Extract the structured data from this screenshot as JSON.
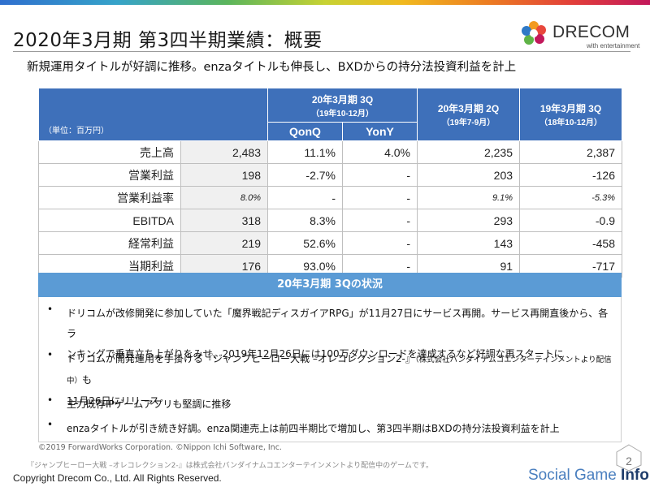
{
  "header": {
    "title": "2020年3月期 第3四半期業績：概要",
    "logo_text": "DRECOM",
    "logo_subtext": "with entertainment",
    "subtitle": "新規運用タイトルが好調に推移。enzaタイトルも伸長し、BXDからの持分法投資利益を計上"
  },
  "table": {
    "unit_label": "（単位：百万円）",
    "col_current_q": "20年3月期 3Q",
    "col_current_q_period": "（19年10-12月）",
    "col_qonq": "QonQ",
    "col_yony": "YonY",
    "col_prev_q": "20年3月期 2Q",
    "col_prev_q_period": "（19年7-9月）",
    "col_prev_year": "19年3月期 3Q",
    "col_prev_year_period": "（18年10-12月）",
    "rows": [
      {
        "label": "売上高",
        "current": "2,483",
        "qonq": "11.1%",
        "yony": "4.0%",
        "prev_q": "2,235",
        "prev_year": "2,387"
      },
      {
        "label": "営業利益",
        "current": "198",
        "qonq": "-2.7%",
        "yony": "-",
        "prev_q": "203",
        "prev_year": "-126"
      },
      {
        "label": "営業利益率",
        "current": "8.0%",
        "qonq": "-",
        "yony": "-",
        "prev_q": "9.1%",
        "prev_year": "-5.3%"
      },
      {
        "label": "EBITDA",
        "current": "318",
        "qonq": "8.3%",
        "yony": "-",
        "prev_q": "293",
        "prev_year": "-0.9"
      },
      {
        "label": "経常利益",
        "current": "219",
        "qonq": "52.6%",
        "yony": "-",
        "prev_q": "143",
        "prev_year": "-458"
      },
      {
        "label": "当期利益",
        "current": "176",
        "qonq": "93.0%",
        "yony": "-",
        "prev_q": "91",
        "prev_year": "-717"
      }
    ]
  },
  "status": {
    "heading": "20年3月期 3Qの状況",
    "bullet_glyph": "•",
    "bullets": [
      {
        "line1": "ドリコムが改修開発に参加していた「魔界戦記ディスガイアRPG」が11月27日にサービス再開。サービス再開直後から、各ラ",
        "line2": "ンキングで垂直立ち上がりをみせ、2019年12月26日には100万ダウンロードを達成するなど好調な再スタートに"
      },
      {
        "line1_main": "ドリコムが開発運用を手掛ける『ジャンプヒーロー大戦 –オレコレクション2-』",
        "line1_small": "（株式会社バンダイナムコエンターテインメントより配信中）",
        "line1_tail": "も",
        "line2": "11月26日にリリース"
      },
      {
        "line1": "主力既存IPゲームアプリも堅調に推移"
      },
      {
        "line1": "enzaタイトルが引き続き好調。enza関連売上は前四半期比で増加し、第3四半期はBXDの持分法投資利益を計上"
      }
    ]
  },
  "footer": {
    "credit1": "©2019 ForwardWorks Corporation. ©Nippon Ichi Software, Inc.",
    "credit2": "『ジャンプヒーロー大戦 –オレコレクション2-』は株式会社バンダイナムコエンターテインメントより配信中のゲームです。",
    "copyright": "Copyright Drecom Co., Ltd. All Rights Reserved.",
    "page_number": "2",
    "watermark_main": "Social Game ",
    "watermark_bold": "Info"
  },
  "colors": {
    "table_header": "#3e70ba",
    "status_bar": "#5b9bd5",
    "value_cell_bg": "#f0f0f0"
  }
}
